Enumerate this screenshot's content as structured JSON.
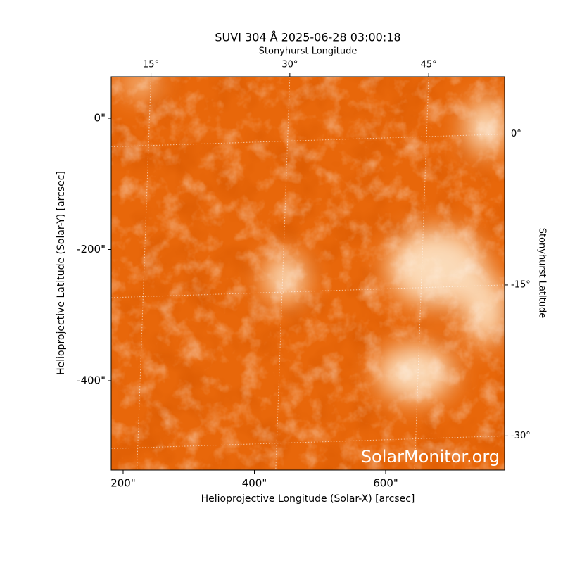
{
  "chart_data": {
    "type": "image",
    "title": "SUVI 304 Å 2025-06-28 03:00:18",
    "xlabel": "Helioprojective Longitude (Solar-X) [arcsec]",
    "ylabel": "Helioprojective Latitude (Solar-Y) [arcsec]",
    "x2label": "Stonyhurst Longitude",
    "y2label": "Stonyhurst Latitude",
    "annotation": "SolarMonitor.org",
    "xlim": [
      181.8,
      781.2
    ],
    "ylim": [
      -536.2,
      63.3
    ],
    "xticks": [
      {
        "value": 200,
        "label": "200\""
      },
      {
        "value": 400,
        "label": "400\""
      },
      {
        "value": 600,
        "label": "600\""
      }
    ],
    "yticks": [
      {
        "value": 0,
        "label": "0\""
      },
      {
        "value": -200,
        "label": "-200\""
      },
      {
        "value": -400,
        "label": "-400\""
      }
    ],
    "x2lim": [
      10.7,
      53.2
    ],
    "x2ticks": [
      {
        "value": 15,
        "label": "15°"
      },
      {
        "value": 30,
        "label": "30°"
      },
      {
        "value": 45,
        "label": "45°"
      }
    ],
    "y2lim": [
      -33.4,
      5.7
    ],
    "y2ticks": [
      {
        "value": 0,
        "label": "0°"
      },
      {
        "value": -15,
        "label": "-15°"
      },
      {
        "value": -30,
        "label": "-30°"
      }
    ],
    "grid": true
  }
}
